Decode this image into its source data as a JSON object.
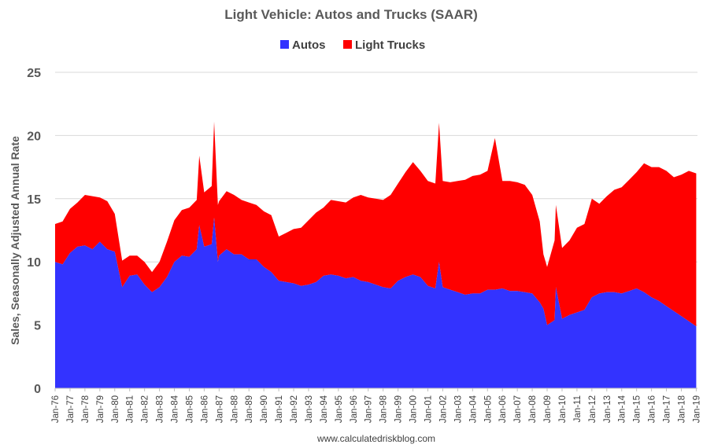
{
  "chart_data": {
    "type": "area",
    "stacked": true,
    "title": "Light Vehicle: Autos and Trucks (SAAR)",
    "ylabel": "Sales, Seasonally Adjusted Annual Rate",
    "xlabel": "",
    "ylim": [
      0,
      25
    ],
    "yticks": [
      "0",
      "5",
      "10",
      "15",
      "20",
      "25"
    ],
    "grid": true,
    "legend_position": "top",
    "footer": "www.calculatedriskblog.com",
    "x_tick_labels": [
      "Jan-76",
      "Jan-77",
      "Jan-78",
      "Jan-79",
      "Jan-80",
      "Jan-81",
      "Jan-82",
      "Jan-83",
      "Jan-84",
      "Jan-85",
      "Jan-86",
      "Jan-87",
      "Jan-88",
      "Jan-89",
      "Jan-90",
      "Jan-91",
      "Jan-92",
      "Jan-93",
      "Jan-94",
      "Jan-95",
      "Jan-96",
      "Jan-97",
      "Jan-98",
      "Jan-99",
      "Jan-00",
      "Jan-01",
      "Jan-02",
      "Jan-03",
      "Jan-04",
      "Jan-05",
      "Jan-06",
      "Jan-07",
      "Jan-08",
      "Jan-09",
      "Jan-10",
      "Jan-11",
      "Jan-12",
      "Jan-13",
      "Jan-14",
      "Jan-15",
      "Jan-16",
      "Jan-17",
      "Jan-18",
      "Jan-19"
    ],
    "x": [
      "1976-01",
      "1976-07",
      "1977-01",
      "1977-07",
      "1978-01",
      "1978-07",
      "1979-01",
      "1979-07",
      "1980-01",
      "1980-07",
      "1981-01",
      "1981-07",
      "1982-01",
      "1982-07",
      "1983-01",
      "1983-07",
      "1984-01",
      "1984-07",
      "1985-01",
      "1985-07",
      "1985-09",
      "1986-01",
      "1986-07",
      "1986-09",
      "1986-12",
      "1987-01",
      "1987-07",
      "1988-01",
      "1988-07",
      "1989-01",
      "1989-07",
      "1990-01",
      "1990-07",
      "1991-01",
      "1991-07",
      "1992-01",
      "1992-07",
      "1993-01",
      "1993-07",
      "1994-01",
      "1994-07",
      "1995-01",
      "1995-07",
      "1996-01",
      "1996-07",
      "1997-01",
      "1997-07",
      "1998-01",
      "1998-07",
      "1999-01",
      "1999-07",
      "2000-01",
      "2000-07",
      "2001-01",
      "2001-07",
      "2001-10",
      "2002-01",
      "2002-07",
      "2003-01",
      "2003-07",
      "2004-01",
      "2004-07",
      "2005-01",
      "2005-07",
      "2006-01",
      "2006-07",
      "2007-01",
      "2007-07",
      "2008-01",
      "2008-07",
      "2008-10",
      "2009-01",
      "2009-07",
      "2009-08",
      "2010-01",
      "2010-07",
      "2011-01",
      "2011-07",
      "2012-01",
      "2012-07",
      "2013-01",
      "2013-07",
      "2014-01",
      "2014-07",
      "2015-01",
      "2015-07",
      "2016-01",
      "2016-07",
      "2017-01",
      "2017-07",
      "2018-01",
      "2018-07",
      "2019-01"
    ],
    "series": [
      {
        "name": "Autos",
        "color": "#3333ff",
        "values": [
          10.0,
          9.8,
          10.7,
          11.2,
          11.3,
          11.0,
          11.6,
          11.0,
          10.8,
          8.0,
          8.9,
          9.0,
          8.2,
          7.6,
          8.0,
          8.8,
          10.0,
          10.5,
          10.4,
          11.0,
          12.9,
          11.2,
          11.4,
          13.5,
          10.0,
          10.5,
          11.0,
          10.6,
          10.6,
          10.2,
          10.2,
          9.6,
          9.2,
          8.5,
          8.4,
          8.3,
          8.1,
          8.2,
          8.4,
          8.9,
          9.0,
          8.9,
          8.7,
          8.8,
          8.5,
          8.4,
          8.2,
          8.0,
          7.9,
          8.5,
          8.8,
          9.0,
          8.8,
          8.1,
          7.9,
          10.0,
          8.0,
          7.8,
          7.6,
          7.4,
          7.5,
          7.5,
          7.8,
          7.8,
          7.9,
          7.7,
          7.7,
          7.6,
          7.5,
          6.8,
          6.3,
          5.0,
          5.4,
          8.0,
          5.5,
          5.8,
          6.0,
          6.2,
          7.2,
          7.5,
          7.6,
          7.6,
          7.5,
          7.7,
          7.9,
          7.6,
          7.2,
          6.9,
          6.5,
          6.1,
          5.7,
          5.3,
          4.9
        ]
      },
      {
        "name": "Light Trucks",
        "color": "#ff0000",
        "values": [
          3.0,
          3.4,
          3.5,
          3.5,
          4.0,
          4.2,
          3.5,
          3.8,
          3.0,
          2.1,
          1.6,
          1.5,
          1.8,
          1.6,
          2.0,
          2.8,
          3.3,
          3.6,
          3.9,
          3.9,
          5.5,
          4.3,
          4.6,
          7.6,
          4.5,
          4.3,
          4.6,
          4.7,
          4.3,
          4.5,
          4.3,
          4.4,
          4.5,
          3.5,
          3.9,
          4.3,
          4.6,
          5.1,
          5.5,
          5.4,
          5.9,
          5.9,
          6.0,
          6.3,
          6.8,
          6.7,
          6.8,
          6.9,
          7.4,
          7.7,
          8.3,
          8.9,
          8.4,
          8.3,
          8.3,
          11.0,
          8.4,
          8.5,
          8.8,
          9.1,
          9.3,
          9.4,
          9.4,
          12.0,
          8.5,
          8.7,
          8.6,
          8.5,
          7.8,
          6.4,
          4.3,
          4.6,
          6.3,
          6.5,
          5.6,
          5.9,
          6.7,
          6.8,
          7.8,
          7.1,
          7.6,
          8.1,
          8.4,
          8.8,
          9.2,
          10.2,
          10.3,
          10.6,
          10.7,
          10.6,
          11.2,
          11.9,
          12.1
        ]
      }
    ]
  }
}
